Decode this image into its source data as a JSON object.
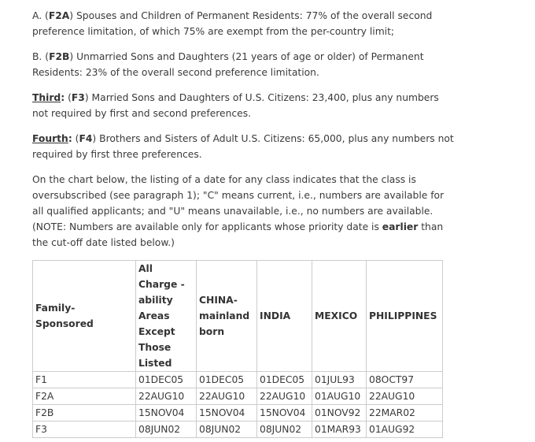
{
  "paragraphs": {
    "a": {
      "prefix": "A. (",
      "code": "F2A",
      "text": ") Spouses and Children of Permanent Residents:  77% of the overall second preference limitation, of which 75% are exempt from the per-country limit;"
    },
    "b": {
      "prefix": "B. (",
      "code": "F2B",
      "text": ") Unmarried Sons and Daughters (21 years of age or older) of Permanent Residents:  23% of the overall second preference limitation."
    },
    "third": {
      "label": "Third",
      "colon": ":  (",
      "code": "F3",
      "text": ") Married Sons and Daughters of U.S. Citizens:  23,400, plus any numbers not required by first and second preferences."
    },
    "fourth": {
      "label": "Fourth",
      "colon": ":  (",
      "code": "F4",
      "text": ") Brothers and Sisters of Adult U.S. Citizens:  65,000, plus any numbers not required by first three preferences."
    },
    "note": {
      "text": "On the chart below, the listing of a date for any class indicates that the class is oversubscribed (see paragraph 1); \"C\" means current, i.e., numbers are available for all qualified applicants; and \"U\" means unavailable, i.e., no numbers are available. (NOTE:  Numbers are available only for applicants whose priority date is ",
      "bold": "earlier",
      "end": " than the cut-off date listed below.)"
    }
  },
  "table": {
    "headers": [
      "Family-Sponsored",
      "All Charge -ability Areas Except Those Listed",
      "CHINA- mainland born",
      "INDIA",
      "MEXICO",
      "PHILIPPINES"
    ],
    "rows": [
      [
        "F1",
        "01DEC05",
        "01DEC05",
        "01DEC05",
        "01JUL93",
        "08OCT97"
      ],
      [
        "F2A",
        "22AUG10",
        "22AUG10",
        "22AUG10",
        "01AUG10",
        "22AUG10"
      ],
      [
        "F2B",
        "15NOV04",
        "15NOV04",
        "15NOV04",
        "01NOV92",
        "22MAR02"
      ],
      [
        "F3",
        "08JUN02",
        "08JUN02",
        "08JUN02",
        "01MAR93",
        "01AUG92"
      ]
    ]
  }
}
